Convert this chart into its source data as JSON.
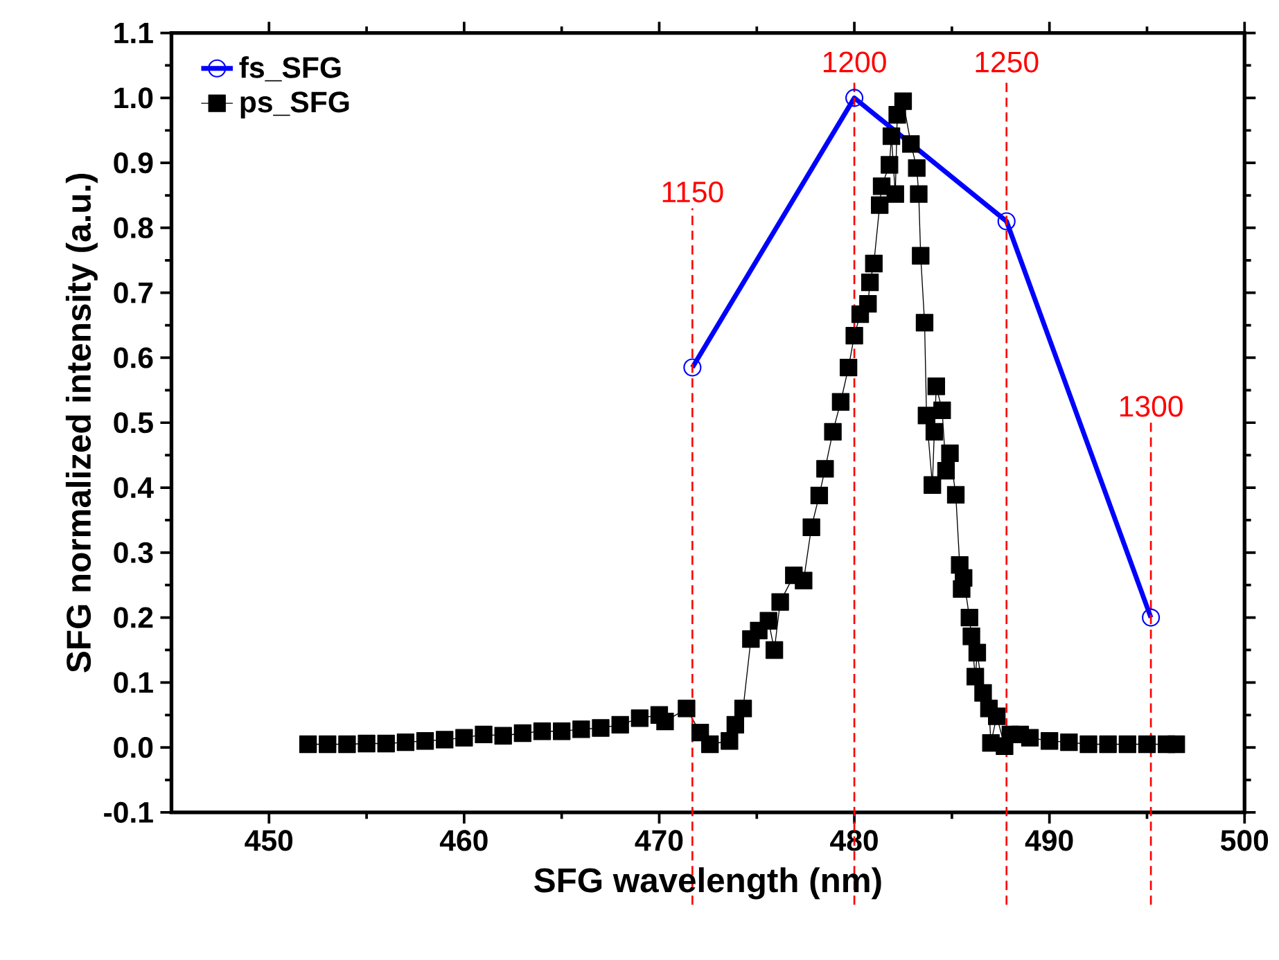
{
  "chart_data": {
    "type": "line",
    "xlabel": "SFG wavelength (nm)",
    "ylabel": "SFG normalized intensity (a.u.)",
    "xlim": [
      445,
      500
    ],
    "xticks": [
      450,
      460,
      470,
      480,
      490,
      500
    ],
    "ylim": [
      -0.1,
      1.1
    ],
    "yticks": [
      {
        "value": -0.1,
        "label": "-0.1"
      },
      {
        "value": 0,
        "label": "0.0"
      },
      {
        "value": 0.1,
        "label": "0.1"
      },
      {
        "value": 0.2,
        "label": "0.2"
      },
      {
        "value": 0.3,
        "label": "0.3"
      },
      {
        "value": 0.4,
        "label": "0.4"
      },
      {
        "value": 0.5,
        "label": "0.5"
      },
      {
        "value": 0.6,
        "label": "0.6"
      },
      {
        "value": 0.7,
        "label": "0.7"
      },
      {
        "value": 0.8,
        "label": "0.8"
      },
      {
        "value": 0.9,
        "label": "0.9"
      },
      {
        "value": 1,
        "label": "1.0"
      },
      {
        "value": 1.1,
        "label": "1.1"
      }
    ],
    "legend": "top left",
    "grid": false,
    "line_style": "solid",
    "series": [
      {
        "name": "fs_SFG",
        "color": "#0000ff",
        "marker": "circle",
        "x": [
          471.7,
          480.0,
          487.8,
          495.2
        ],
        "values": [
          0.585,
          1.0,
          0.81,
          0.2
        ]
      },
      {
        "name": "ps_SFG",
        "color": "#000000",
        "marker": "square",
        "x": [
          452,
          453,
          454,
          455,
          456,
          457,
          458,
          459,
          460,
          461,
          462,
          463,
          464,
          465,
          466,
          467,
          468,
          469,
          470,
          470.3,
          471.4,
          472.1,
          472.6,
          473.6,
          473.9,
          474.3,
          474.7,
          475.1,
          475.6,
          475.9,
          476.2,
          476.9,
          477.4,
          477.8,
          478.2,
          478.5,
          478.9,
          479.3,
          479.7,
          480.0,
          480.3,
          480.7,
          480.8,
          481.0,
          481.3,
          481.4,
          481.8,
          481.9,
          482.1,
          482.2,
          482.5,
          482.9,
          483.2,
          483.3,
          483.4,
          483.6,
          483.7,
          484.0,
          484.1,
          484.2,
          484.5,
          484.7,
          484.9,
          485.2,
          485.4,
          485.5,
          485.6,
          485.9,
          486.0,
          486.2,
          486.3,
          486.6,
          486.9,
          487.0,
          487.3,
          487.7,
          488.0,
          488.5,
          489,
          490,
          491,
          492,
          493,
          494,
          495,
          496,
          496.5
        ],
        "values": [
          0.005,
          0.005,
          0.005,
          0.006,
          0.006,
          0.008,
          0.01,
          0.012,
          0.015,
          0.02,
          0.018,
          0.022,
          0.025,
          0.025,
          0.028,
          0.03,
          0.035,
          0.045,
          0.05,
          0.04,
          0.06,
          0.023,
          0.005,
          0.01,
          0.035,
          0.06,
          0.167,
          0.18,
          0.195,
          0.15,
          0.224,
          0.265,
          0.257,
          0.339,
          0.388,
          0.429,
          0.486,
          0.532,
          0.585,
          0.634,
          0.667,
          0.683,
          0.716,
          0.745,
          0.835,
          0.864,
          0.897,
          0.941,
          0.852,
          0.974,
          0.995,
          0.929,
          0.892,
          0.852,
          0.757,
          0.654,
          0.511,
          0.404,
          0.486,
          0.556,
          0.519,
          0.426,
          0.453,
          0.389,
          0.281,
          0.244,
          0.261,
          0.2,
          0.171,
          0.109,
          0.146,
          0.084,
          0.06,
          0.007,
          0.048,
          0.002,
          0.02,
          0.02,
          0.015,
          0.01,
          0.008,
          0.005,
          0.005,
          0.005,
          0.005,
          0.005,
          0.005
        ]
      }
    ],
    "ref_lines": [
      {
        "axis": "x",
        "value": 471.7,
        "color": "#ff0000",
        "line_style": "dashed"
      },
      {
        "axis": "x",
        "value": 480.0,
        "color": "#ff0000",
        "line_style": "dashed"
      },
      {
        "axis": "x",
        "value": 487.8,
        "color": "#ff0000",
        "line_style": "dashed"
      },
      {
        "axis": "x",
        "value": 495.2,
        "color": "#ff0000",
        "line_style": "dashed"
      }
    ],
    "annotations": [
      {
        "text": "1150",
        "x": 471.7,
        "y": 0.83
      },
      {
        "text": "1200",
        "x": 480.0,
        "y": 1.03
      },
      {
        "text": "1250",
        "x": 487.8,
        "y": 1.03
      },
      {
        "text": "1300",
        "x": 495.2,
        "y": 0.5
      }
    ]
  }
}
